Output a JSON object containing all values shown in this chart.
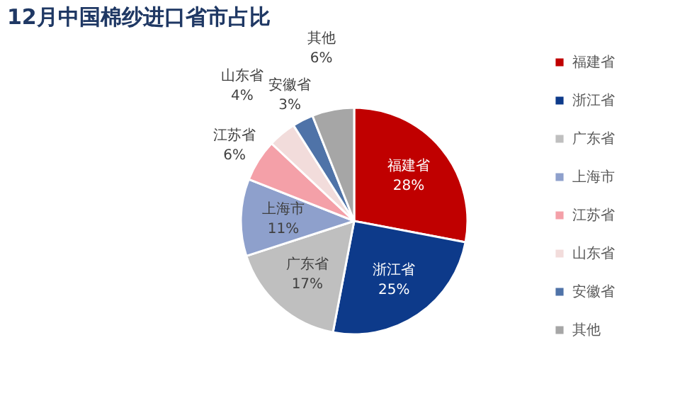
{
  "chart_data": {
    "type": "pie",
    "title": "12月中国棉纱进口省市占比",
    "categories": [
      "福建省",
      "浙江省",
      "广东省",
      "上海市",
      "江苏省",
      "山东省",
      "安徽省",
      "其他"
    ],
    "values": [
      28,
      25,
      17,
      11,
      6,
      4,
      3,
      6
    ],
    "value_labels": [
      "28%",
      "25%",
      "17%",
      "11%",
      "6%",
      "4%",
      "3%",
      "6%"
    ],
    "colors": [
      "#c00000",
      "#0d3a8a",
      "#bfbfbf",
      "#8ea0cc",
      "#f4a0a8",
      "#f2dcdb",
      "#4f73a8",
      "#a6a6a6"
    ],
    "legend": "right"
  }
}
